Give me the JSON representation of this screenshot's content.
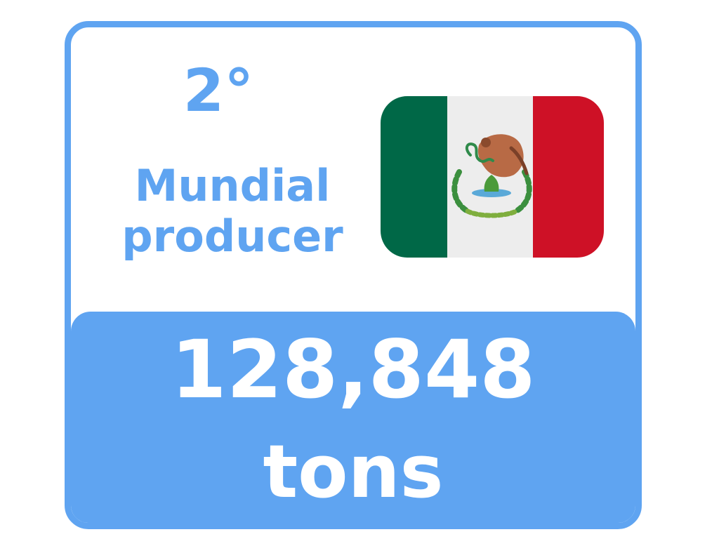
{
  "card": {
    "rank": "2°",
    "label_lines": [
      "Mundial",
      "producer"
    ],
    "value": "128,848",
    "unit": "tons"
  },
  "flag": {
    "country_icon": "mexico-flag-icon",
    "stripes": [
      "#006847",
      "#ededed",
      "#ce1126"
    ]
  },
  "colors": {
    "accent": "#5fa4f1",
    "text_on_accent": "#ffffff"
  }
}
